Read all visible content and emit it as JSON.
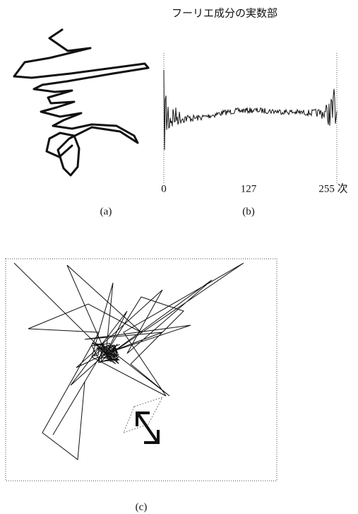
{
  "panels": [
    {
      "label": "(a)"
    },
    {
      "title": "フーリエ成分の実数部",
      "x_labels": [
        "0",
        "127",
        "255 次"
      ],
      "label": "(b)"
    },
    {
      "label": "(c)"
    }
  ]
}
